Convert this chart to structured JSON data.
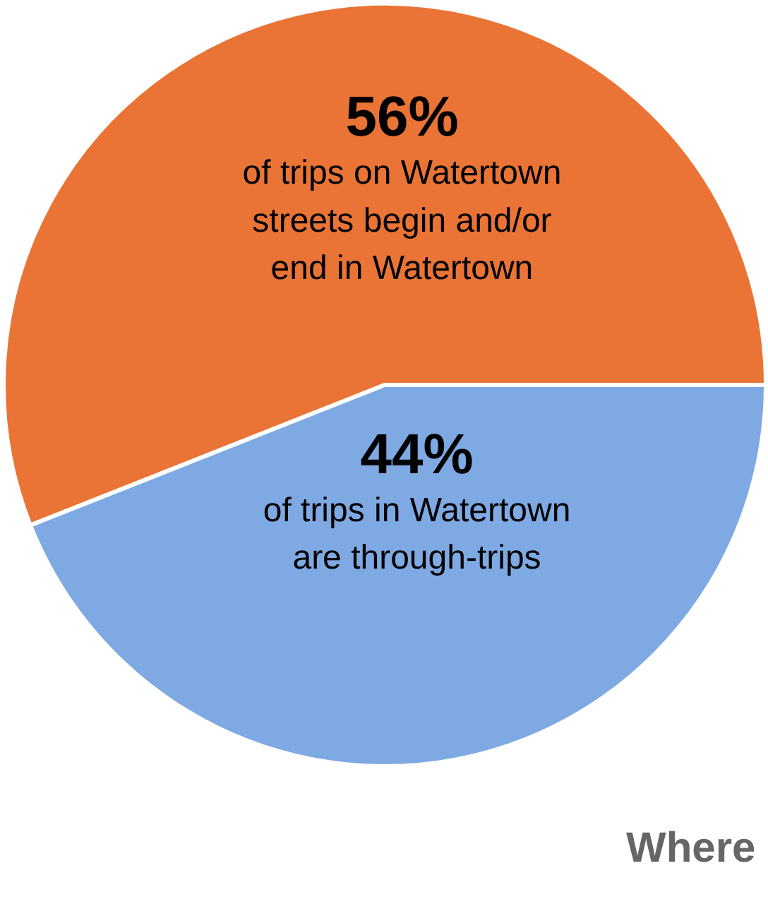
{
  "chart_data": {
    "type": "pie",
    "categories": [
      "of trips on Watertown\nstreets begin and/or\nend in Watertown",
      "of trips in Watertown\nare through-trips"
    ],
    "values": [
      56,
      44
    ],
    "colors": [
      "#e97435",
      "#7ea9e3"
    ],
    "value_labels": [
      "56%",
      "44%"
    ],
    "annotations": [
      "Where"
    ]
  }
}
